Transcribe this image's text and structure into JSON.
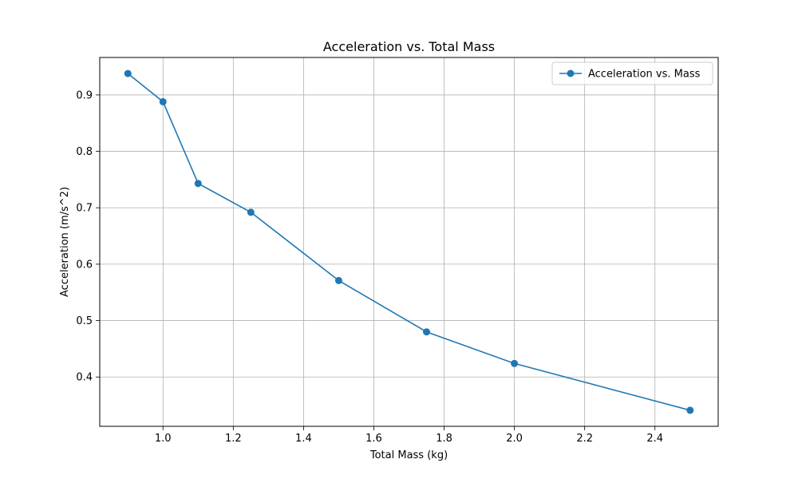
{
  "chart_data": {
    "type": "line",
    "title": "Acceleration vs. Total Mass",
    "xlabel": "Total Mass (kg)",
    "ylabel": "Acceleration (m/s^2)",
    "x": [
      0.9,
      1.0,
      1.1,
      1.25,
      1.5,
      1.75,
      2.0,
      2.5
    ],
    "series": [
      {
        "name": "Acceleration vs. Mass",
        "values": [
          0.938,
          0.888,
          0.743,
          0.692,
          0.571,
          0.48,
          0.424,
          0.341
        ],
        "color": "#1f77b4",
        "marker": "circle"
      }
    ],
    "xlim": [
      0.82,
      2.58
    ],
    "ylim": [
      0.3126,
      0.9664
    ],
    "xticks": [
      1.0,
      1.2,
      1.4,
      1.6,
      1.8,
      2.0,
      2.2,
      2.4
    ],
    "xtick_labels": [
      "1.0",
      "1.2",
      "1.4",
      "1.6",
      "1.8",
      "2.0",
      "2.2",
      "2.4"
    ],
    "yticks": [
      0.4,
      0.5,
      0.6,
      0.7,
      0.8,
      0.9
    ],
    "ytick_labels": [
      "0.4",
      "0.5",
      "0.6",
      "0.7",
      "0.8",
      "0.9"
    ],
    "grid": true,
    "legend_position": "top-right"
  }
}
